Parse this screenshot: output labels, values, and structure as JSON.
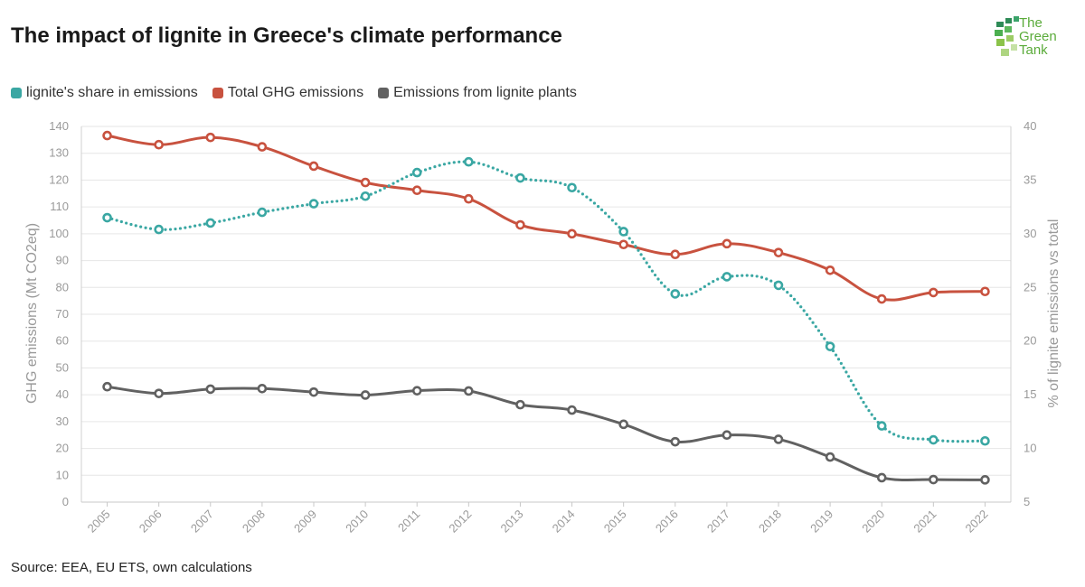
{
  "title": "The impact of lignite in Greece's climate performance",
  "source": "Source: EEA, EU ETS, own calculations",
  "logo": {
    "line1": "The",
    "line2": "Green",
    "line3": "Tank"
  },
  "legend": [
    {
      "label": "lignite's share in emissions",
      "color": "#3aa7a3"
    },
    {
      "label": "Total GHG emissions",
      "color": "#c8523f"
    },
    {
      "label": "Emissions from lignite plants",
      "color": "#616161"
    }
  ],
  "chart_data": {
    "type": "line",
    "x": [
      "2005",
      "2006",
      "2007",
      "2008",
      "2009",
      "2010",
      "2011",
      "2012",
      "2013",
      "2014",
      "2015",
      "2016",
      "2017",
      "2018",
      "2019",
      "2020",
      "2021",
      "2022"
    ],
    "y_left": {
      "label": "GHG emissions (Mt CO2eq)",
      "range": [
        0,
        140
      ],
      "ticks": [
        0,
        10,
        20,
        30,
        40,
        50,
        60,
        70,
        80,
        90,
        100,
        110,
        120,
        130,
        140
      ]
    },
    "y_right": {
      "label": "% of lignite emissions vs total",
      "range": [
        5,
        40
      ],
      "ticks": [
        5,
        10,
        15,
        20,
        25,
        30,
        35,
        40
      ]
    },
    "series": [
      {
        "name": "lignite's share in emissions",
        "axis": "right",
        "style": "dotted",
        "color": "#3aa7a3",
        "values": [
          31.5,
          30.4,
          31.0,
          32.0,
          32.8,
          33.5,
          35.7,
          36.7,
          35.2,
          34.3,
          30.2,
          24.4,
          26.0,
          25.2,
          19.5,
          12.1,
          10.8,
          10.7
        ]
      },
      {
        "name": "Total GHG emissions",
        "axis": "left",
        "style": "solid",
        "color": "#c8523f",
        "values": [
          136.6,
          133.2,
          135.9,
          132.4,
          125.2,
          119.1,
          116.2,
          113.0,
          103.3,
          100.0,
          96.0,
          92.3,
          96.3,
          93.0,
          86.4,
          75.7,
          78.1,
          78.5
        ]
      },
      {
        "name": "Emissions from lignite plants",
        "axis": "left",
        "style": "solid",
        "color": "#616161",
        "values": [
          43.0,
          40.5,
          42.1,
          42.3,
          41.0,
          39.9,
          41.5,
          41.4,
          36.3,
          34.3,
          29.0,
          22.5,
          25.0,
          23.4,
          16.8,
          9.1,
          8.4,
          8.3
        ]
      }
    ],
    "grid": true,
    "legend_position": "top-left"
  }
}
